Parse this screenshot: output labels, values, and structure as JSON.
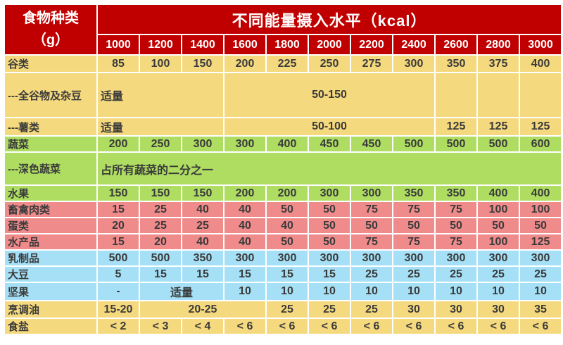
{
  "colors": {
    "header_red": "#C00000",
    "grain_yellow": "#F5D97E",
    "vegetable_green": "#AEDD62",
    "meat_pink": "#F08B8C",
    "dairy_blue": "#A5E0F6",
    "text_dark": "#3A3A3A",
    "border_white": "#FFFFFF"
  },
  "table": {
    "row_header_title": "食物种类",
    "row_header_unit": "（g）",
    "kcal_header": "不同能量摄入水平（kcal）",
    "energy_levels": [
      "1000",
      "1200",
      "1400",
      "1600",
      "1800",
      "2000",
      "2200",
      "2400",
      "2600",
      "2800",
      "3000"
    ],
    "rows": [
      {
        "label": "谷类",
        "band": "grain_yellow",
        "cells": [
          "85",
          "100",
          "150",
          "200",
          "225",
          "250",
          "275",
          "300",
          "350",
          "375",
          "400"
        ]
      },
      {
        "label": "---全谷物及杂豆",
        "band": "grain_yellow",
        "cells": [
          {
            "text": "适量",
            "span": 3,
            "align": "left"
          },
          {
            "text": "50-150",
            "span": 5
          },
          {
            "text": "",
            "span": 1
          },
          {
            "text": "",
            "span": 1
          },
          {
            "text": "",
            "span": 1
          }
        ]
      },
      {
        "label": "---薯类",
        "band": "grain_yellow",
        "cells": [
          {
            "text": "适量",
            "span": 3,
            "align": "left"
          },
          {
            "text": "50-100",
            "span": 5
          },
          "125",
          "125",
          "125"
        ]
      },
      {
        "label": "蔬菜",
        "band": "vegetable_green",
        "cells": [
          "200",
          "250",
          "300",
          "300",
          "400",
          "450",
          "450",
          "500",
          "500",
          "500",
          "600"
        ]
      },
      {
        "label": "---深色蔬菜",
        "band": "vegetable_green",
        "cells": [
          {
            "text": "占所有蔬菜的二分之一",
            "span": 11,
            "align": "left"
          }
        ]
      },
      {
        "label": "水果",
        "band": "vegetable_green",
        "cells": [
          "150",
          "150",
          "150",
          "200",
          "200",
          "300",
          "300",
          "350",
          "350",
          "400",
          "400"
        ]
      },
      {
        "label": "畜禽肉类",
        "band": "meat_pink",
        "cells": [
          "15",
          "25",
          "40",
          "40",
          "50",
          "50",
          "75",
          "75",
          "75",
          "100",
          "100"
        ]
      },
      {
        "label": "蛋类",
        "band": "meat_pink",
        "cells": [
          "20",
          "25",
          "25",
          "40",
          "40",
          "50",
          "50",
          "50",
          "50",
          "50",
          "50"
        ]
      },
      {
        "label": "水产品",
        "band": "meat_pink",
        "cells": [
          "15",
          "20",
          "40",
          "40",
          "50",
          "50",
          "75",
          "75",
          "75",
          "100",
          "125"
        ]
      },
      {
        "label": "乳制品",
        "band": "dairy_blue",
        "cells": [
          "500",
          "500",
          "350",
          "300",
          "300",
          "300",
          "300",
          "300",
          "300",
          "300",
          "300"
        ]
      },
      {
        "label": "大豆",
        "band": "dairy_blue",
        "cells": [
          "5",
          "15",
          "15",
          "15",
          "15",
          "15",
          "25",
          "25",
          "25",
          "25",
          "25"
        ]
      },
      {
        "label": "坚果",
        "band": "dairy_blue",
        "cells": [
          "-",
          {
            "text": "适量",
            "span": 2
          },
          "10",
          "10",
          "10",
          "10",
          "10",
          "10",
          "10",
          "10"
        ]
      },
      {
        "label": "烹调油",
        "band": "grain_yellow",
        "cells": [
          "15-20",
          {
            "text": "20-25",
            "span": 3
          },
          "25",
          "25",
          "25",
          "30",
          "30",
          "30",
          "35"
        ]
      },
      {
        "label": "食盐",
        "band": "grain_yellow",
        "cells": [
          "< 2",
          "< 3",
          "< 4",
          "< 6",
          "< 6",
          "< 6",
          "< 6",
          "< 6",
          "< 6",
          "< 6",
          "< 6"
        ]
      }
    ]
  }
}
